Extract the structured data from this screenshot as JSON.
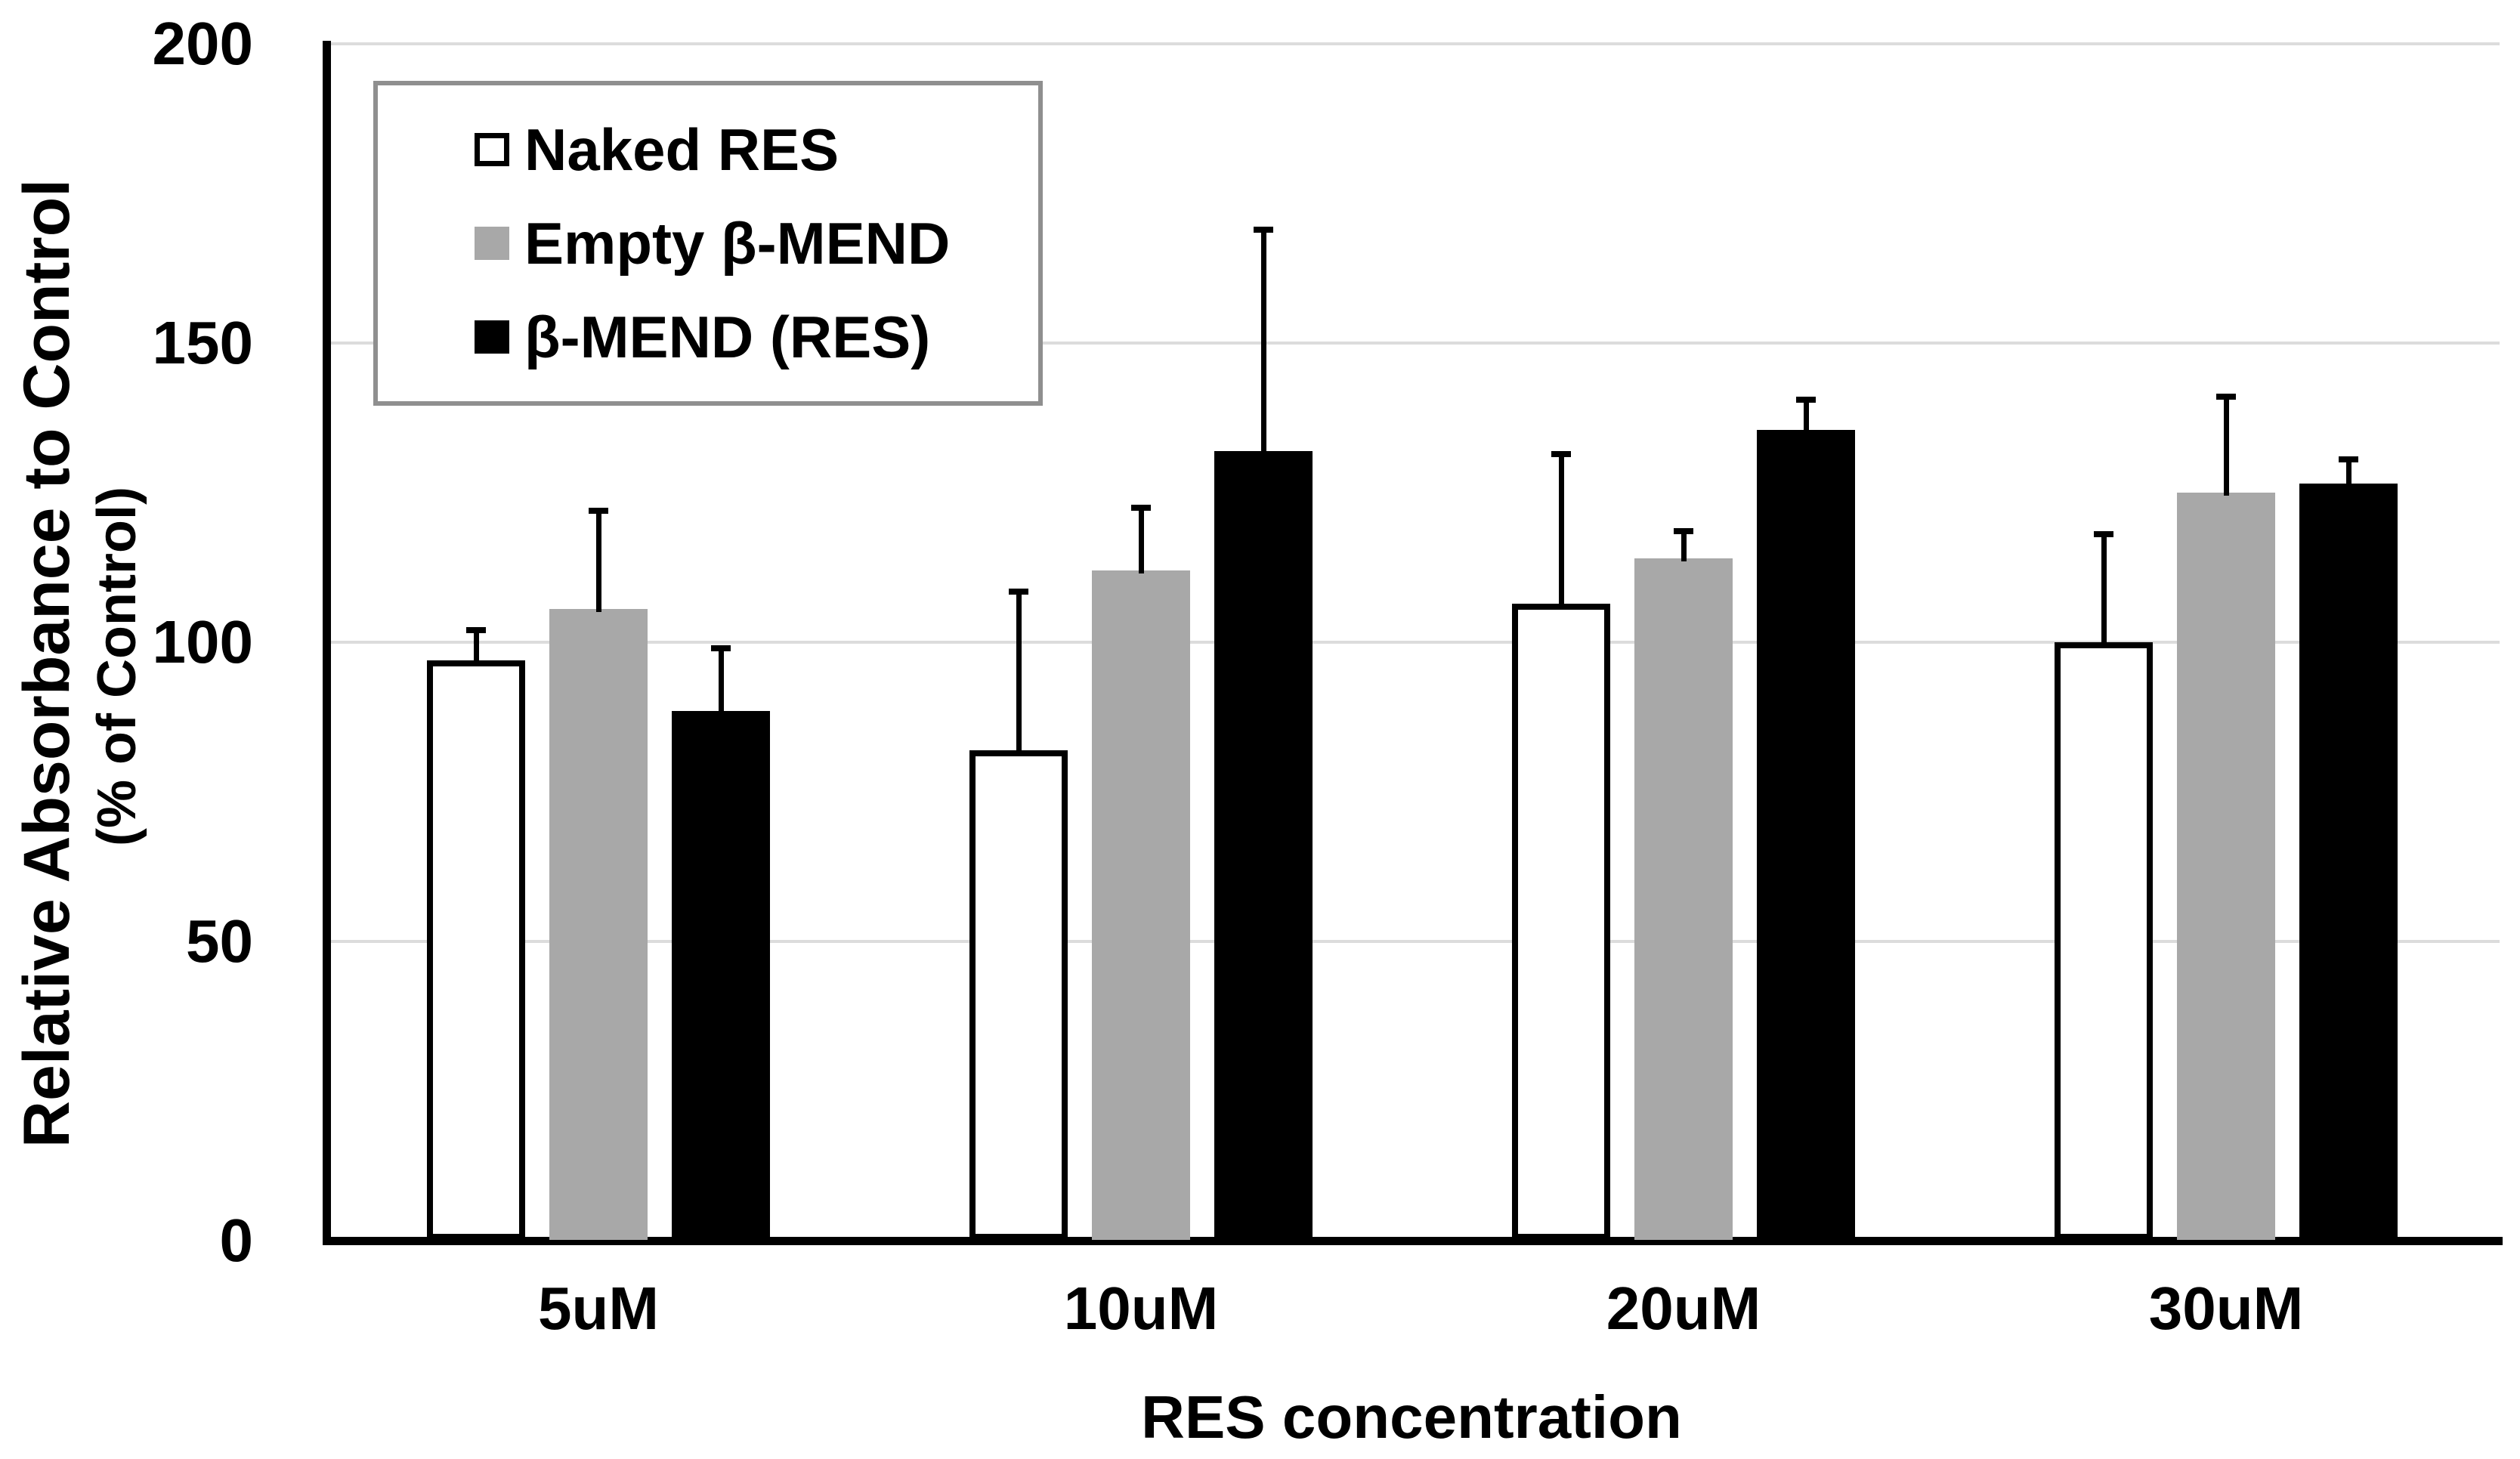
{
  "chart_data": {
    "type": "bar",
    "categories": [
      "5uM",
      "10uM",
      "20uM",
      "30uM"
    ],
    "series": [
      {
        "name": "Naked RES",
        "fill": "#ffffff",
        "outlined": true,
        "values": [
          97,
          82,
          106.5,
          100
        ],
        "errors": [
          5,
          26.5,
          25,
          18
        ]
      },
      {
        "name": "Empty β-MEND",
        "fill": "#a8a8a8",
        "outlined": false,
        "values": [
          105.5,
          112,
          114,
          125
        ],
        "errors": [
          16.5,
          10.5,
          4.5,
          16
        ]
      },
      {
        "name": "β-MEND (RES)",
        "fill": "#000000",
        "outlined": false,
        "values": [
          88.5,
          132,
          135.5,
          126.5
        ],
        "errors": [
          10.5,
          37,
          5,
          4
        ]
      }
    ],
    "title": "",
    "xlabel": "RES concentration",
    "ylabel_line1": "Relative Absorbance to Control",
    "ylabel_line2": "(% of Control)",
    "ylim": [
      0,
      200
    ],
    "yticks": [
      0,
      50,
      100,
      150,
      200
    ],
    "gridlines_at": [
      50,
      100,
      150,
      200
    ],
    "grid": "horizontal-major",
    "legend_position": "upper-left-inside",
    "error_bars": "upper-only",
    "colors": {
      "bar_outline": "#000000",
      "gridline": "#dcdcdc",
      "axis": "#000000",
      "legend_border": "#8f8f8f",
      "background": "#ffffff"
    }
  }
}
